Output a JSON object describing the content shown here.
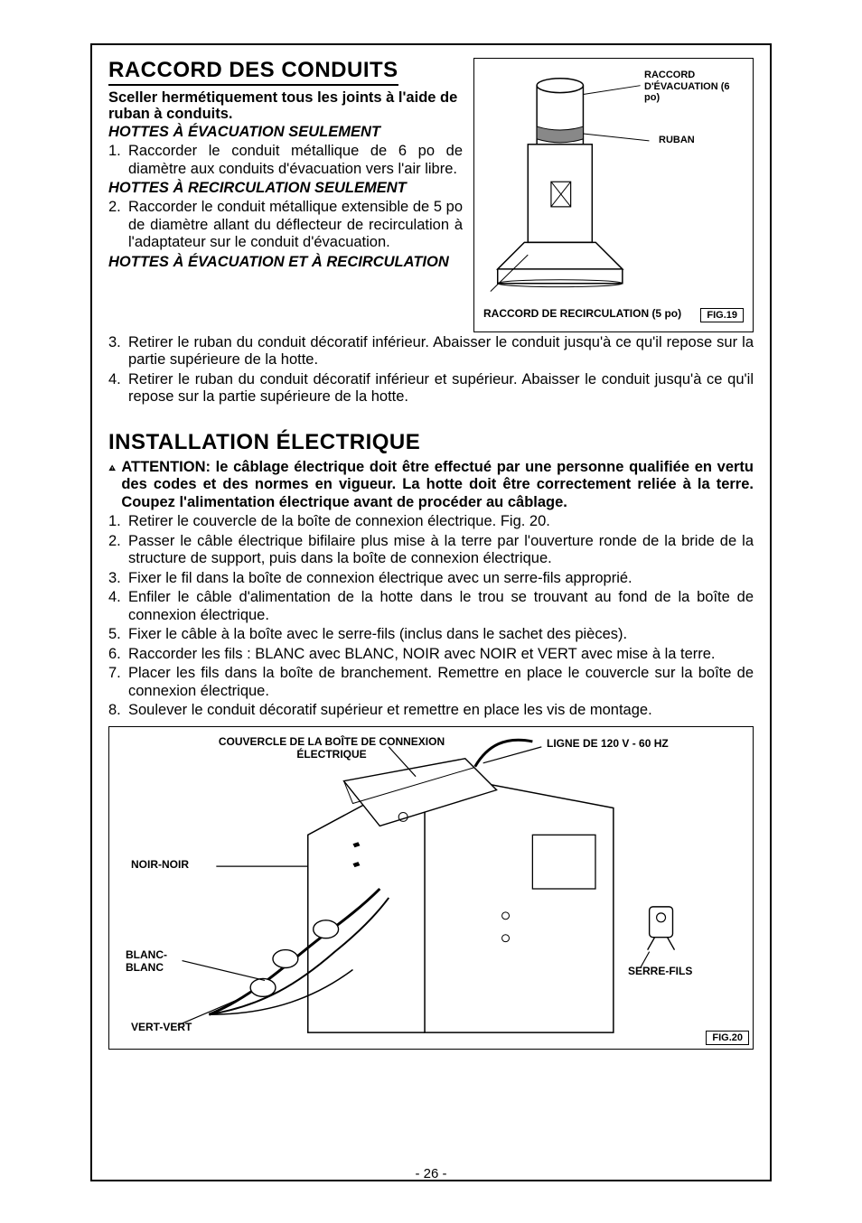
{
  "page_number": "- 26 -",
  "section1": {
    "title": "RACCORD DES CONDUITS",
    "lead": "Sceller hermétiquement tous les joints à l'aide de ruban à conduits.",
    "sub_a": "HOTTES À ÉVACUATION SEULEMENT",
    "item1_num": "1.",
    "item1": "Raccorder le conduit métallique de 6 po de diamètre aux conduits d'évacuation vers l'air libre.",
    "sub_b": "HOTTES À RECIRCULATION SEULEMENT",
    "item2_num": "2.",
    "item2": "Raccorder le conduit métallique extensible de 5 po de diamètre allant du déflecteur de recirculation à l'adaptateur sur le conduit d'évacuation.",
    "sub_c": "HOTTES À ÉVACUATION ET À RECIRCULATION",
    "item3_num": "3.",
    "item3": "Retirer le ruban du conduit décoratif inférieur. Abaisser le conduit jusqu'à ce qu'il repose sur la partie supérieure de la hotte.",
    "item4_num": "4.",
    "item4": "Retirer le ruban du conduit décoratif inférieur et supérieur. Abaisser le conduit jusqu'à ce qu'il repose sur la partie supérieure de la hotte."
  },
  "fig19": {
    "label_evac": "RACCORD D'ÉVACUATION (6 po)",
    "label_ruban": "RUBAN",
    "label_recirc": "RACCORD DE RECIRCULATION (5 po)",
    "caption": "FIG.19"
  },
  "section2": {
    "title": "INSTALLATION ÉLECTRIQUE",
    "warning": "ATTENTION: le câblage électrique doit être effectué par une personne qualifiée en vertu des codes et des normes en vigueur. La hotte doit être correctement reliée à la terre. Coupez l'alimentation électrique avant de procéder au câblage.",
    "items": [
      {
        "n": "1.",
        "t": "Retirer le couvercle de la boîte de connexion électrique. Fig. 20."
      },
      {
        "n": "2.",
        "t": "Passer le câble électrique bifilaire plus mise à la terre par l'ouverture ronde de la bride de la structure de support, puis dans la boîte de connexion électrique."
      },
      {
        "n": "3.",
        "t": "Fixer le fil dans la boîte de connexion électrique avec un serre-fils approprié."
      },
      {
        "n": "4.",
        "t": "Enfiler le câble d'alimentation de la hotte dans le trou se trouvant au fond de la boîte de connexion électrique."
      },
      {
        "n": "5.",
        "t": "Fixer le câble à la boîte avec le serre-fils (inclus dans le sachet des pièces)."
      },
      {
        "n": "6.",
        "t": "Raccorder les fils : BLANC avec BLANC, NOIR avec NOIR et VERT avec mise à la terre."
      },
      {
        "n": "7.",
        "t": "Placer les fils dans la boîte de branchement. Remettre en place le couvercle sur la boîte de connexion électrique."
      },
      {
        "n": "8.",
        "t": "Soulever le conduit décoratif supérieur et remettre en place les vis de montage."
      }
    ]
  },
  "fig20": {
    "label_cover": "COUVERCLE DE LA BOÎTE DE CONNEXION ÉLECTRIQUE",
    "label_line": "LIGNE DE 120 V - 60 HZ",
    "label_noir": "NOIR-NOIR",
    "label_blanc": "BLANC-BLANC",
    "label_vert": "VERT-VERT",
    "label_clamp": "SERRE-FILS",
    "caption": "FIG.20"
  }
}
